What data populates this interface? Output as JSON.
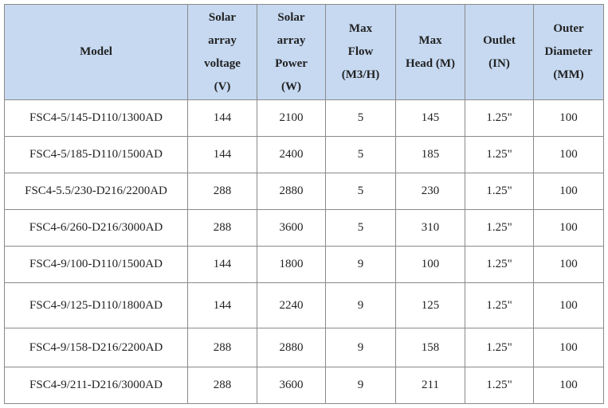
{
  "table": {
    "headers": [
      [
        "Model"
      ],
      [
        "Solar",
        "array",
        "voltage",
        "(V)"
      ],
      [
        "Solar",
        "array",
        "Power",
        "(W)"
      ],
      [
        "Max",
        "Flow",
        "(M3/H)"
      ],
      [
        "Max",
        "Head (M)"
      ],
      [
        "Outlet",
        "(IN)"
      ],
      [
        "Outer",
        "Diameter",
        "(MM)"
      ]
    ],
    "rows": [
      [
        "FSC4-5/145-D110/1300AD",
        "144",
        "2100",
        "5",
        "145",
        "1.25\"",
        "100"
      ],
      [
        "FSC4-5/185-D110/1500AD",
        "144",
        "2400",
        "5",
        "185",
        "1.25\"",
        "100"
      ],
      [
        "FSC4-5.5/230-D216/2200AD",
        "288",
        "2880",
        "5",
        "230",
        "1.25\"",
        "100"
      ],
      [
        "FSC4-6/260-D216/3000AD",
        "288",
        "3600",
        "5",
        "310",
        "1.25\"",
        "100"
      ],
      [
        "FSC4-9/100-D110/1500AD",
        "144",
        "1800",
        "9",
        "100",
        "1.25\"",
        "100"
      ],
      [
        "FSC4-9/125-D110/1800AD",
        "144",
        "2240",
        "9",
        "125",
        "1.25\"",
        "100"
      ],
      [
        "FSC4-9/158-D216/2200AD",
        "288",
        "2880",
        "9",
        "158",
        "1.25\"",
        "100"
      ],
      [
        "FSC4-9/211-D216/3000AD",
        "288",
        "3600",
        "9",
        "211",
        "1.25\"",
        "100"
      ]
    ]
  }
}
